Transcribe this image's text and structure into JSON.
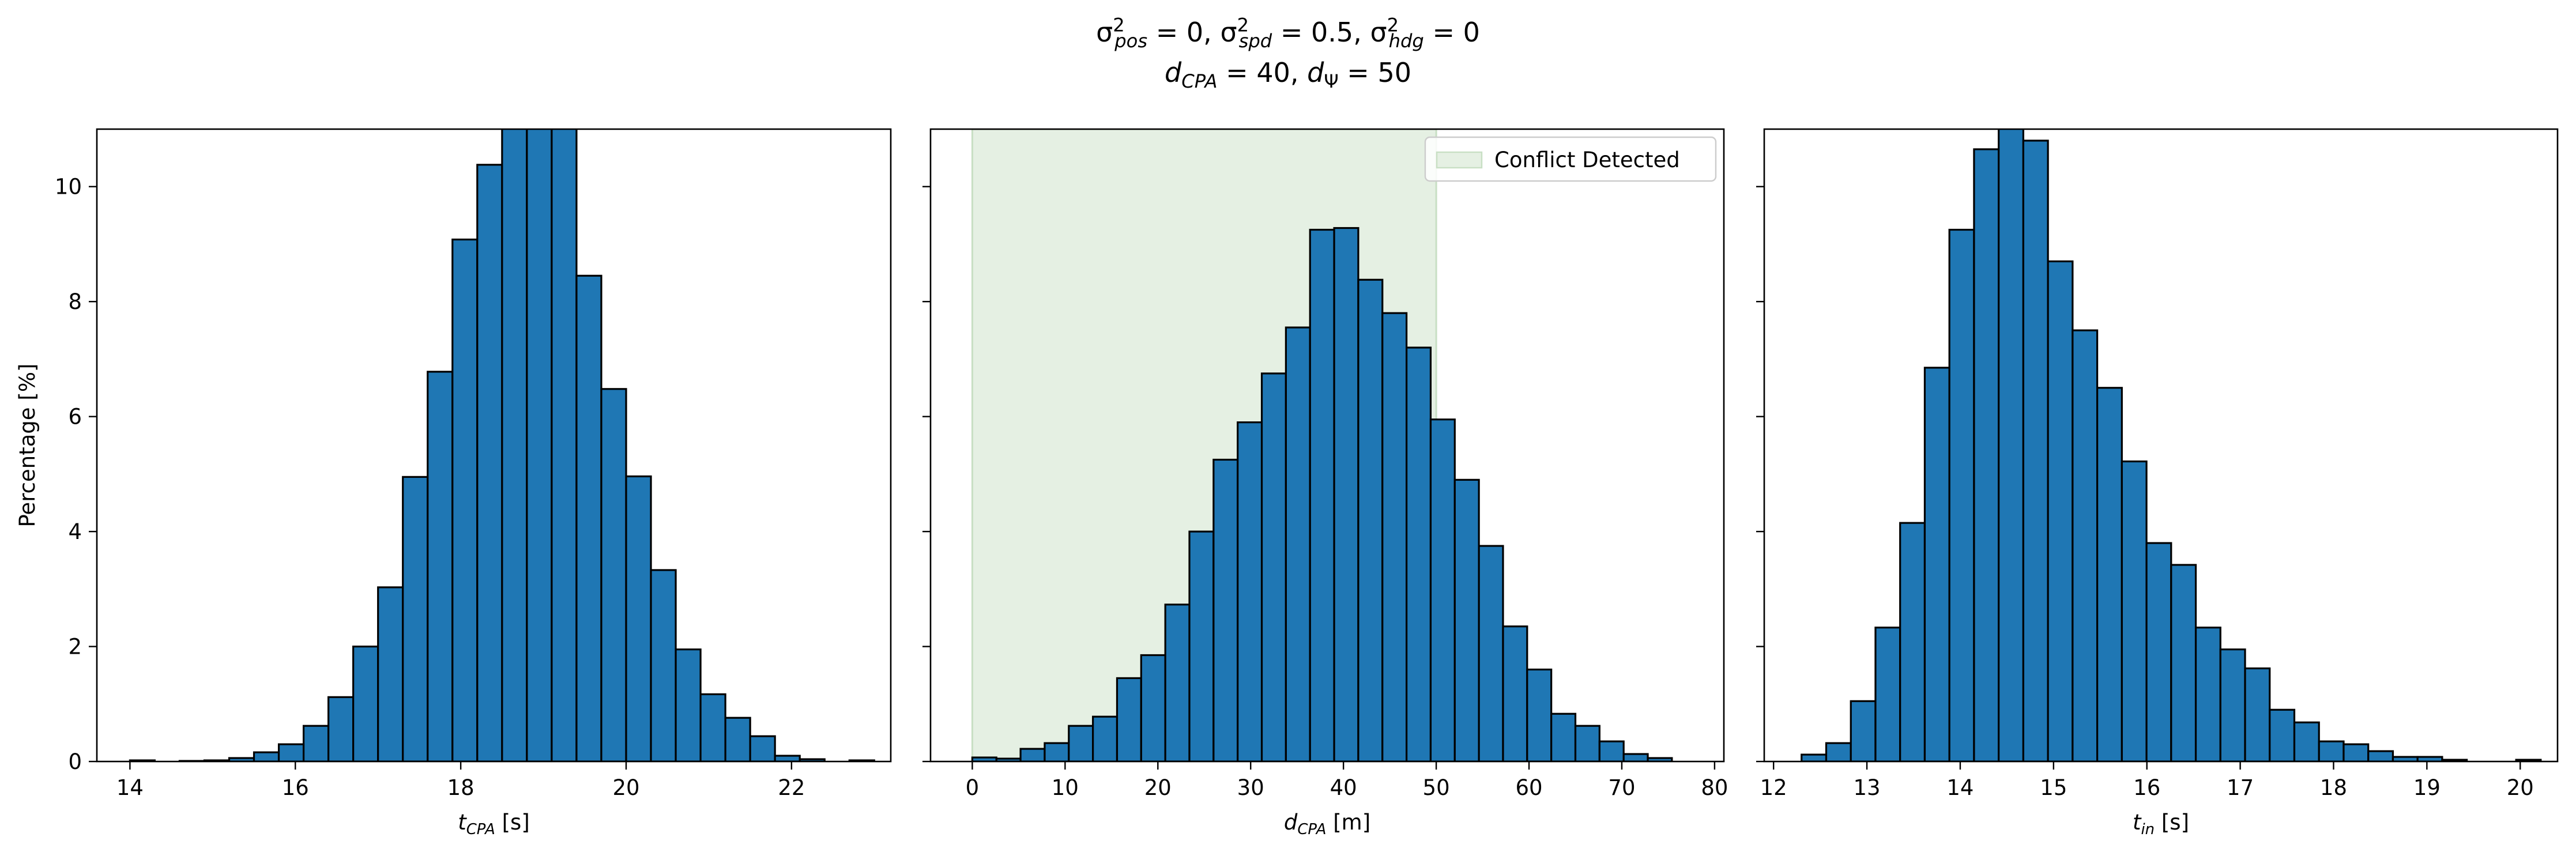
{
  "title_lines": [
    {
      "parts": [
        {
          "t": "σ"
        },
        {
          "t": "2",
          "sup": true
        },
        {
          "t": "pos",
          "sub": true,
          "it": true
        },
        {
          "t": " = 0, "
        },
        {
          "t": "σ"
        },
        {
          "t": "2",
          "sup": true
        },
        {
          "t": "spd",
          "sub": true,
          "it": true
        },
        {
          "t": " = 0.5, "
        },
        {
          "t": "σ"
        },
        {
          "t": "2",
          "sup": true
        },
        {
          "t": "hdg",
          "sub": true,
          "it": true
        },
        {
          "t": " = 0"
        }
      ]
    },
    {
      "parts": [
        {
          "t": "d",
          "it": true
        },
        {
          "t": "CPA",
          "sub": true,
          "it": true
        },
        {
          "t": " = 40, "
        },
        {
          "t": "d",
          "it": true
        },
        {
          "t": "Ψ",
          "sub": true
        },
        {
          "t": " = 50"
        }
      ]
    }
  ],
  "colors": {
    "bar": "#1f77b4",
    "edge": "#000000",
    "conflict_fill": "#e5f0e3",
    "conflict_edge": "#c8dfc4"
  },
  "chart_data": [
    {
      "type": "bar",
      "xlabel_parts": [
        {
          "t": "t",
          "it": true
        },
        {
          "t": "CPA",
          "sub": true,
          "it": true
        },
        {
          "t": " [s]"
        }
      ],
      "ylabel": "Percentage [%]",
      "xlim": [
        13.6,
        23.2
      ],
      "ylim": [
        0,
        11
      ],
      "xticks": [
        14,
        16,
        18,
        20,
        22
      ],
      "yticks": [
        0,
        2,
        4,
        6,
        8,
        10
      ],
      "grid": false,
      "bin_start": 14.0,
      "bin_width": 0.3,
      "values": [
        0.02,
        0.0,
        0.01,
        0.02,
        0.06,
        0.16,
        0.3,
        0.62,
        1.12,
        2.0,
        3.03,
        4.95,
        6.78,
        9.08,
        10.38,
        11.4,
        11.3,
        11.05,
        8.45,
        6.48,
        4.96,
        3.33,
        1.95,
        1.17,
        0.76,
        0.44,
        0.1,
        0.04,
        0.0,
        0.02
      ]
    },
    {
      "type": "bar",
      "xlabel_parts": [
        {
          "t": "d",
          "it": true
        },
        {
          "t": "CPA",
          "sub": true,
          "it": true
        },
        {
          "t": " [m]"
        }
      ],
      "xlim": [
        -4.5,
        81
      ],
      "ylim": [
        0,
        11
      ],
      "xticks": [
        0,
        10,
        20,
        30,
        40,
        50,
        60,
        70,
        80
      ],
      "yticks": [
        0,
        2,
        4,
        6,
        8,
        10
      ],
      "grid": false,
      "bin_start": 0,
      "bin_width": 2.6,
      "values": [
        0.07,
        0.05,
        0.22,
        0.32,
        0.62,
        0.78,
        1.45,
        1.85,
        2.73,
        4.0,
        5.25,
        5.9,
        6.75,
        7.55,
        9.25,
        9.28,
        8.38,
        7.8,
        7.2,
        5.95,
        4.9,
        3.75,
        2.35,
        1.6,
        0.83,
        0.62,
        0.35,
        0.13,
        0.06
      ],
      "highlight": {
        "from": 0,
        "to": 50,
        "label": "Conflict Detected"
      },
      "legend": "top-right"
    },
    {
      "type": "bar",
      "xlabel_parts": [
        {
          "t": "t",
          "it": true
        },
        {
          "t": "in",
          "sub": true,
          "it": true
        },
        {
          "t": " [s]"
        }
      ],
      "xlim": [
        11.9,
        20.4
      ],
      "ylim": [
        0,
        11
      ],
      "xticks": [
        12,
        13,
        14,
        15,
        16,
        17,
        18,
        19,
        20
      ],
      "yticks": [
        0,
        2,
        4,
        6,
        8,
        10
      ],
      "grid": false,
      "bin_start": 12.3,
      "bin_width": 0.264,
      "values": [
        0.12,
        0.32,
        1.05,
        2.33,
        4.15,
        6.85,
        9.25,
        10.65,
        11.05,
        10.8,
        8.7,
        7.5,
        6.5,
        5.22,
        3.8,
        3.42,
        2.33,
        1.95,
        1.62,
        0.9,
        0.68,
        0.35,
        0.3,
        0.18,
        0.08,
        0.08,
        0.03,
        0.0,
        0.0,
        0.03
      ]
    }
  ]
}
